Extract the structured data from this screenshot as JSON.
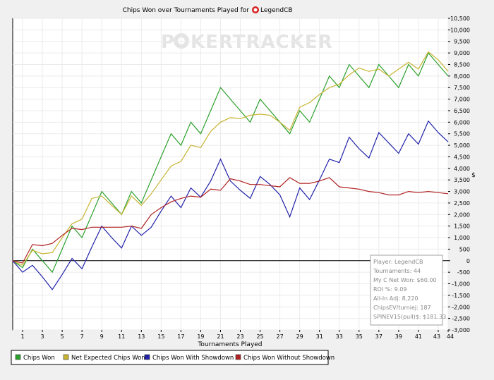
{
  "chart_data": {
    "type": "line",
    "title_prefix": "Chips Won over Tournaments Played for",
    "player_name": "LegendCB",
    "xlabel": "Tournaments Played",
    "ylabel_unit": "$",
    "watermark_left": "P",
    "watermark_suit": "♠",
    "watermark_right": "KERTRACKER",
    "xlim": [
      0,
      44
    ],
    "ylim": [
      -3000,
      10500
    ],
    "xticks": [
      1,
      3,
      5,
      7,
      9,
      11,
      13,
      15,
      17,
      19,
      21,
      23,
      25,
      27,
      29,
      31,
      33,
      35,
      37,
      39,
      41,
      43,
      44
    ],
    "yticks": [
      -3000,
      -2500,
      -2000,
      -1500,
      -1000,
      -500,
      0,
      500,
      1000,
      1500,
      2000,
      2500,
      3000,
      3500,
      4000,
      4500,
      5000,
      5500,
      6000,
      6500,
      7000,
      7500,
      8000,
      8500,
      9000,
      9500,
      10000,
      10500
    ],
    "ytick_labels": [
      "-3,000",
      "-2,500",
      "-2,000",
      "-1,500",
      "-1,000",
      "-500",
      "0",
      "500",
      "1,000",
      "1,500",
      "2,000",
      "2,500",
      "3,000",
      "3,500",
      "4,000",
      "4,500",
      "5,000",
      "5,500",
      "6,000",
      "6,500",
      "7,000",
      "7,500",
      "8,000",
      "8,500",
      "9,000",
      "9,500",
      "10,000",
      "10,500"
    ],
    "x": [
      0,
      1,
      2,
      3,
      4,
      5,
      6,
      7,
      8,
      9,
      10,
      11,
      12,
      13,
      14,
      15,
      16,
      17,
      18,
      19,
      20,
      21,
      22,
      23,
      24,
      25,
      26,
      27,
      28,
      29,
      30,
      31,
      32,
      33,
      34,
      35,
      36,
      37,
      38,
      39,
      40,
      41,
      42,
      43,
      44
    ],
    "series": [
      {
        "name": "Chips Won",
        "color": "#2ca02c",
        "values": [
          0,
          -300,
          500,
          0,
          -500,
          500,
          1500,
          1000,
          2000,
          3000,
          2500,
          2000,
          3000,
          2500,
          3500,
          4500,
          5500,
          5000,
          6000,
          5500,
          6500,
          7500,
          7000,
          6500,
          6000,
          7000,
          6500,
          6000,
          5500,
          6500,
          6000,
          7000,
          8000,
          7500,
          8500,
          8000,
          7500,
          8500,
          8000,
          7500,
          8500,
          8000,
          9000,
          8500,
          8000
        ]
      },
      {
        "name": "Net Expected Chips Won",
        "color": "#c8b432",
        "values": [
          0,
          -200,
          450,
          300,
          350,
          1000,
          1600,
          1800,
          2700,
          2800,
          2400,
          2000,
          2800,
          2400,
          2900,
          3500,
          4100,
          4300,
          5000,
          4900,
          5600,
          6000,
          6200,
          6150,
          6300,
          6350,
          6300,
          6000,
          5650,
          6650,
          6850,
          7200,
          7500,
          7650,
          8050,
          8350,
          8200,
          8300,
          8000,
          8300,
          8600,
          8300,
          9050,
          8700,
          8200
        ]
      },
      {
        "name": "Chips Won With Showdown",
        "color": "#2222aa",
        "values": [
          0,
          -500,
          -200,
          -700,
          -1250,
          -600,
          100,
          -350,
          600,
          1500,
          1000,
          550,
          1500,
          1100,
          1450,
          2150,
          2800,
          2300,
          3150,
          2750,
          3450,
          4400,
          3450,
          3050,
          2700,
          3650,
          3300,
          2850,
          1900,
          3150,
          2650,
          3500,
          4400,
          4250,
          5350,
          4850,
          4450,
          5550,
          5100,
          4650,
          5500,
          5050,
          6050,
          5550,
          5150
        ]
      },
      {
        "name": "Chips Won Without Showdown",
        "color": "#b22222",
        "values": [
          0,
          -100,
          700,
          650,
          750,
          1100,
          1400,
          1350,
          1450,
          1450,
          1450,
          1450,
          1500,
          1400,
          2000,
          2300,
          2550,
          2700,
          2800,
          2750,
          3100,
          3050,
          3550,
          3450,
          3300,
          3300,
          3250,
          3200,
          3600,
          3350,
          3350,
          3450,
          3600,
          3200,
          3150,
          3100,
          3000,
          2950,
          2850,
          2850,
          3000,
          2950,
          3000,
          2950,
          2900
        ]
      }
    ],
    "info_box": [
      "Player: LegendCB",
      "Tournaments: 44",
      "My C Net Won: $60.00",
      "ROI %: 9.09",
      "All-In Adj: 8,220",
      "ChipsEV/turniej: 187",
      "SPINEV15(pull)$: $181.33"
    ],
    "legend_position": "bottom-left",
    "grid": true
  }
}
